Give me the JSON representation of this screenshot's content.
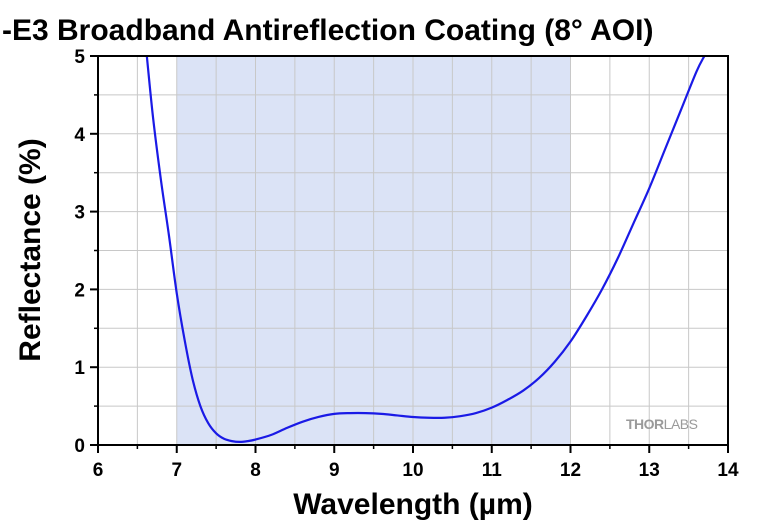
{
  "chart_data": {
    "type": "line",
    "title": "-E3 Broadband Antireflection Coating (8° AOI)",
    "xlabel": "Wavelength (µm)",
    "ylabel": "Reflectance (%)",
    "xlim": [
      6,
      14
    ],
    "ylim": [
      0,
      5
    ],
    "x_ticks": [
      "6",
      "7",
      "8",
      "9",
      "10",
      "11",
      "12",
      "13",
      "14"
    ],
    "y_ticks": [
      "0",
      "1",
      "2",
      "3",
      "4",
      "5"
    ],
    "grid": true,
    "highlight_band": {
      "x_start": 7,
      "x_end": 12,
      "color": "#dbe3f6"
    },
    "series": [
      {
        "color": "#1a1ae6",
        "x": [
          6.62,
          6.7,
          6.8,
          6.9,
          7.0,
          7.1,
          7.2,
          7.3,
          7.4,
          7.5,
          7.6,
          7.7,
          7.8,
          7.9,
          8.0,
          8.2,
          8.4,
          8.6,
          8.8,
          9.0,
          9.2,
          9.4,
          9.6,
          9.8,
          10.0,
          10.2,
          10.4,
          10.6,
          10.8,
          11.0,
          11.2,
          11.4,
          11.6,
          11.8,
          12.0,
          12.2,
          12.4,
          12.6,
          12.8,
          13.0,
          13.2,
          13.4,
          13.6,
          13.7
        ],
        "y": [
          5.0,
          4.2,
          3.4,
          2.7,
          1.95,
          1.35,
          0.85,
          0.5,
          0.28,
          0.15,
          0.08,
          0.05,
          0.04,
          0.05,
          0.07,
          0.13,
          0.22,
          0.3,
          0.36,
          0.4,
          0.41,
          0.41,
          0.4,
          0.38,
          0.36,
          0.35,
          0.35,
          0.37,
          0.41,
          0.48,
          0.58,
          0.7,
          0.86,
          1.07,
          1.33,
          1.65,
          2.0,
          2.4,
          2.85,
          3.3,
          3.8,
          4.3,
          4.8,
          5.0
        ]
      }
    ]
  },
  "watermark": {
    "text_bold": "THOR",
    "text_light": "LABS"
  }
}
